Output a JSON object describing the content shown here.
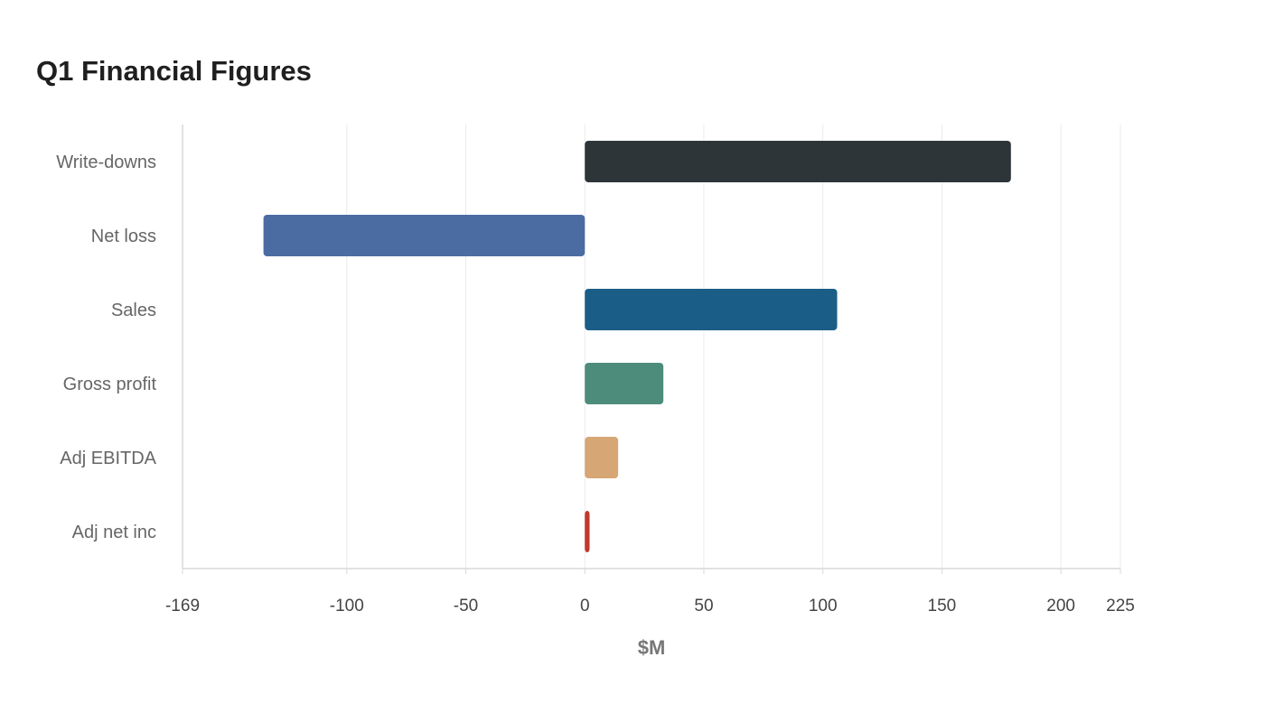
{
  "chart_data": {
    "type": "bar",
    "orientation": "horizontal",
    "title": "Q1 Financial Figures",
    "xlabel": "$M",
    "ylabel": "",
    "categories": [
      "Write-downs",
      "Net loss",
      "Sales",
      "Gross profit",
      "Adj EBITDA",
      "Adj net inc"
    ],
    "values": [
      179,
      -135,
      106,
      33,
      14,
      2
    ],
    "colors": [
      "#2e3538",
      "#4a6ca3",
      "#1a5e87",
      "#4d8c7b",
      "#d6a675",
      "#c0392b"
    ],
    "xlim": [
      -169,
      225
    ],
    "xticks": [
      -169,
      -100,
      -50,
      0,
      50,
      100,
      150,
      200,
      225
    ],
    "grid": "vertical",
    "legend": "none"
  }
}
